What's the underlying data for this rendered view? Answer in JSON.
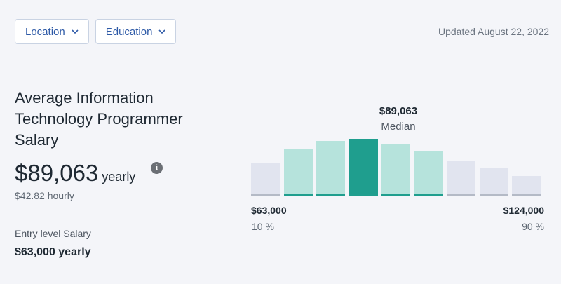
{
  "filters": [
    {
      "label": "Location"
    },
    {
      "label": "Education"
    }
  ],
  "updated": "Updated August 22, 2022",
  "title": "Average Information Technology Programmer Salary",
  "salary": {
    "amount": "$89,063",
    "period": "yearly",
    "hourly": "$42.82 hourly"
  },
  "info_icon": "info-icon",
  "entry": {
    "label": "Entry level Salary",
    "value": "$63,000 yearly"
  },
  "colors": {
    "accent": "#2e5aa7",
    "median_bar": "#1f9e8e",
    "near_bar": "#b6e3dc",
    "outer_bar": "#e1e4ef",
    "base_teal": "#1f9e8e",
    "base_grey": "#b4bac6"
  },
  "chart_data": {
    "type": "bar",
    "median_value": "$89,063",
    "median_label": "Median",
    "low_value": "$63,000",
    "low_percentile": "10 %",
    "high_value": "$124,000",
    "high_percentile": "90 %",
    "values": [
      0.58,
      0.83,
      0.96,
      1.0,
      0.9,
      0.77,
      0.6,
      0.47,
      0.34
    ],
    "tiers": [
      "outer",
      "near",
      "near",
      "median",
      "near",
      "near",
      "outer",
      "outer",
      "outer"
    ]
  }
}
